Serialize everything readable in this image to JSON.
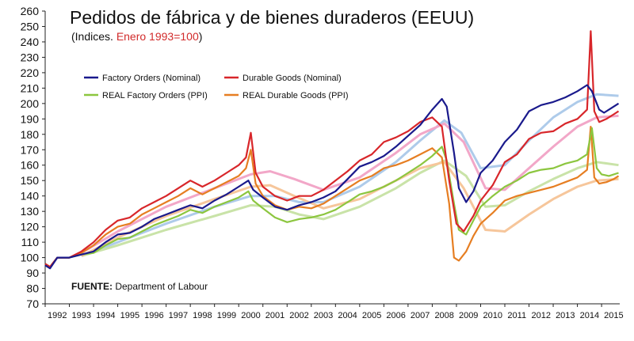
{
  "chart_data": {
    "type": "line",
    "title": "Pedidos de fábrica y de bienes duraderos (EEUU)",
    "subtitle_prefix": "(Indices. ",
    "subtitle_highlight": "Enero 1993=100",
    "subtitle_suffix": ")",
    "source_label": "FUENTE:",
    "source_text": "Department of Labour",
    "ylim": [
      70,
      260
    ],
    "xlim": [
      1992,
      2015.75
    ],
    "y_ticks": [
      70,
      80,
      90,
      100,
      110,
      120,
      130,
      140,
      150,
      160,
      170,
      180,
      190,
      200,
      210,
      220,
      230,
      240,
      250,
      260
    ],
    "x_tick_labels": [
      "1992",
      "1993",
      "1994",
      "1995",
      "1996",
      "1997",
      "1998",
      "1999",
      "2000",
      "2001",
      "2002",
      "2003",
      "2004",
      "2005",
      "2006",
      "2007",
      "2008",
      "2009",
      "2010",
      "2011",
      "2012",
      "2013",
      "2014",
      "2015"
    ],
    "legend_placement": "top-left",
    "grid": false,
    "series": [
      {
        "name": "Factory Orders (Nominal)",
        "color": "#1a1a8c",
        "x": [
          1992.0,
          1992.2,
          1992.5,
          1993.0,
          1993.5,
          1994.0,
          1994.5,
          1995.0,
          1995.5,
          1996.0,
          1996.5,
          1997.0,
          1997.5,
          1998.0,
          1998.5,
          1999.0,
          1999.5,
          2000.0,
          2000.4,
          2000.6,
          2001.0,
          2001.5,
          2002.0,
          2002.5,
          2003.0,
          2003.5,
          2004.0,
          2004.5,
          2005.0,
          2005.5,
          2006.0,
          2006.5,
          2007.0,
          2007.5,
          2008.0,
          2008.4,
          2008.6,
          2008.9,
          2009.1,
          2009.4,
          2009.7,
          2010.0,
          2010.5,
          2011.0,
          2011.5,
          2012.0,
          2012.5,
          2013.0,
          2013.5,
          2014.0,
          2014.4,
          2014.6,
          2014.9,
          2015.1,
          2015.4,
          2015.7
        ],
        "values": [
          95,
          93,
          100,
          100,
          102,
          104,
          110,
          115,
          116,
          120,
          125,
          128,
          131,
          134,
          132,
          137,
          141,
          146,
          150,
          144,
          139,
          133,
          131,
          134,
          136,
          139,
          143,
          151,
          159,
          162,
          166,
          172,
          179,
          186,
          196,
          203,
          198,
          168,
          145,
          136,
          143,
          155,
          163,
          175,
          183,
          195,
          199,
          201,
          204,
          208,
          212,
          208,
          196,
          194,
          197,
          200
        ]
      },
      {
        "name": "Durable Goods (Nominal)",
        "color": "#d8262a",
        "x": [
          1992.0,
          1992.2,
          1992.5,
          1993.0,
          1993.5,
          1994.0,
          1994.5,
          1995.0,
          1995.5,
          1996.0,
          1996.5,
          1997.0,
          1997.5,
          1998.0,
          1998.5,
          1999.0,
          1999.5,
          2000.0,
          2000.3,
          2000.5,
          2000.7,
          2001.0,
          2001.5,
          2002.0,
          2002.5,
          2003.0,
          2003.5,
          2004.0,
          2004.5,
          2005.0,
          2005.5,
          2006.0,
          2006.5,
          2007.0,
          2007.5,
          2008.0,
          2008.4,
          2008.7,
          2009.0,
          2009.3,
          2009.7,
          2010.0,
          2010.5,
          2011.0,
          2011.5,
          2012.0,
          2012.5,
          2013.0,
          2013.5,
          2014.0,
          2014.4,
          2014.55,
          2014.7,
          2014.9,
          2015.2,
          2015.5,
          2015.7
        ],
        "values": [
          96,
          94,
          100,
          100,
          104,
          110,
          118,
          124,
          126,
          132,
          136,
          140,
          145,
          150,
          146,
          150,
          155,
          160,
          165,
          181,
          155,
          146,
          140,
          137,
          140,
          140,
          144,
          150,
          156,
          163,
          167,
          175,
          178,
          182,
          188,
          191,
          185,
          150,
          122,
          117,
          127,
          137,
          147,
          162,
          167,
          177,
          181,
          182,
          187,
          190,
          196,
          247,
          195,
          188,
          190,
          193,
          195
        ]
      },
      {
        "name": "REAL Factory Orders (PPI)",
        "color": "#8cc63f",
        "x": [
          1992.0,
          1992.2,
          1992.5,
          1993.0,
          1993.5,
          1994.0,
          1994.5,
          1995.0,
          1995.5,
          1996.0,
          1996.5,
          1997.0,
          1997.5,
          1998.0,
          1998.5,
          1999.0,
          1999.5,
          2000.0,
          2000.4,
          2000.6,
          2001.0,
          2001.5,
          2002.0,
          2002.5,
          2003.0,
          2003.5,
          2004.0,
          2004.5,
          2005.0,
          2005.5,
          2006.0,
          2006.5,
          2007.0,
          2007.5,
          2008.0,
          2008.4,
          2008.6,
          2008.9,
          2009.1,
          2009.4,
          2009.7,
          2010.0,
          2010.5,
          2011.0,
          2011.5,
          2012.0,
          2012.5,
          2013.0,
          2013.5,
          2014.0,
          2014.4,
          2014.6,
          2014.8,
          2015.0,
          2015.3,
          2015.7
        ],
        "values": [
          96,
          94,
          100,
          100,
          102,
          103,
          108,
          112,
          113,
          117,
          121,
          124,
          127,
          131,
          129,
          133,
          136,
          139,
          143,
          137,
          132,
          126,
          123,
          125,
          126,
          128,
          131,
          136,
          141,
          143,
          146,
          150,
          155,
          160,
          166,
          172,
          163,
          135,
          118,
          115,
          124,
          133,
          140,
          146,
          150,
          155,
          157,
          158,
          161,
          163,
          167,
          184,
          158,
          154,
          153,
          155
        ]
      },
      {
        "name": "REAL Durable Goods (PPI)",
        "color": "#e67e22",
        "x": [
          1992.0,
          1992.2,
          1992.5,
          1993.0,
          1993.5,
          1994.0,
          1994.5,
          1995.0,
          1995.5,
          1996.0,
          1996.5,
          1997.0,
          1997.5,
          1998.0,
          1998.5,
          1999.0,
          1999.5,
          2000.0,
          2000.3,
          2000.5,
          2000.7,
          2001.0,
          2001.5,
          2002.0,
          2002.5,
          2003.0,
          2003.5,
          2004.0,
          2004.5,
          2005.0,
          2005.5,
          2006.0,
          2006.5,
          2007.0,
          2007.5,
          2008.0,
          2008.4,
          2008.7,
          2008.9,
          2009.1,
          2009.4,
          2009.7,
          2010.0,
          2010.5,
          2011.0,
          2011.5,
          2012.0,
          2012.5,
          2013.0,
          2013.5,
          2014.0,
          2014.4,
          2014.55,
          2014.7,
          2014.9,
          2015.2,
          2015.5,
          2015.7
        ],
        "values": [
          95,
          94,
          100,
          100,
          103,
          108,
          115,
          120,
          122,
          128,
          132,
          136,
          140,
          145,
          141,
          145,
          149,
          153,
          158,
          170,
          148,
          140,
          134,
          131,
          133,
          132,
          135,
          140,
          145,
          150,
          153,
          158,
          160,
          163,
          167,
          171,
          165,
          135,
          100,
          98,
          104,
          114,
          122,
          129,
          137,
          140,
          142,
          144,
          146,
          149,
          152,
          157,
          185,
          152,
          148,
          149,
          151,
          153
        ]
      }
    ],
    "trend_lines": [
      {
        "color": "#aecbea",
        "x": [
          1993.5,
          1995,
          1997,
          1999,
          2000.5,
          2001.5,
          2002.5,
          2003.5,
          2005,
          2006.5,
          2007.5,
          2008.5,
          2009.2,
          2010,
          2011,
          2012,
          2013,
          2014,
          2014.8,
          2015.7
        ],
        "values": [
          101,
          110,
          122,
          133,
          140,
          140,
          136,
          136,
          146,
          162,
          176,
          189,
          181,
          158,
          160,
          176,
          191,
          201,
          206,
          205
        ]
      },
      {
        "color": "#f2a7c8",
        "x": [
          1993.5,
          1995,
          1997,
          1999,
          2000.5,
          2001.3,
          2002.3,
          2003.5,
          2005,
          2006.5,
          2007.5,
          2008.5,
          2009.3,
          2010.2,
          2011,
          2012,
          2013,
          2014,
          2014.8,
          2015.7
        ],
        "values": [
          103,
          117,
          133,
          145,
          154,
          156,
          151,
          144,
          152,
          168,
          180,
          187,
          175,
          145,
          144,
          158,
          172,
          185,
          191,
          192
        ]
      },
      {
        "color": "#c9e3a8",
        "x": [
          1993.5,
          1995,
          1997,
          1999,
          2000.5,
          2001.5,
          2002.5,
          2003.5,
          2005,
          2006.5,
          2007.5,
          2008.5,
          2009.4,
          2010.2,
          2011,
          2012,
          2013,
          2014,
          2014.8,
          2015.7
        ],
        "values": [
          101,
          108,
          118,
          127,
          134,
          133,
          128,
          125,
          133,
          145,
          155,
          163,
          153,
          133,
          134,
          143,
          151,
          158,
          162,
          160
        ]
      },
      {
        "color": "#f6c69b",
        "x": [
          1993.5,
          1995,
          1997,
          1999,
          2000.5,
          2001.3,
          2002.3,
          2003.5,
          2005,
          2006.5,
          2007.5,
          2008.5,
          2009.3,
          2010.2,
          2011,
          2012,
          2013,
          2014,
          2014.8,
          2015.7
        ],
        "values": [
          101,
          113,
          127,
          138,
          146,
          147,
          140,
          132,
          138,
          150,
          158,
          162,
          145,
          118,
          117,
          128,
          138,
          146,
          150,
          151
        ]
      }
    ]
  }
}
